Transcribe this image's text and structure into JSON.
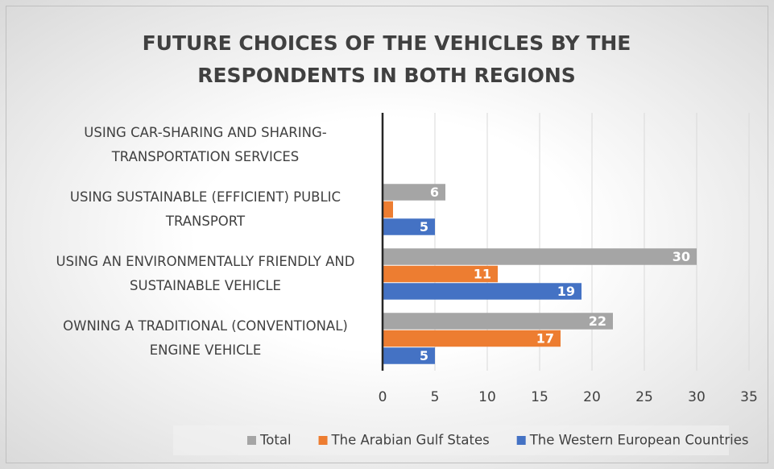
{
  "chart_data": {
    "type": "hbar",
    "title": "FUTURE CHOICES OF THE VEHICLES BY THE RESPONDENTS IN BOTH REGIONS",
    "categories": [
      "OWNING A TRADITIONAL (CONVENTIONAL) ENGINE VEHICLE",
      "USING AN ENVIRONMENTALLY FRIENDLY AND SUSTAINABLE VEHICLE",
      "USING SUSTAINABLE (EFFICIENT) PUBLIC TRANSPORT",
      "USING CAR-SHARING AND SHARING-TRANSPORTATION SERVICES"
    ],
    "series": [
      {
        "name": "Total",
        "color": "#a5a5a5",
        "values": [
          22,
          30,
          6,
          0
        ],
        "value_labels": [
          "22",
          "30",
          "6",
          null
        ]
      },
      {
        "name": "The Arabian Gulf States",
        "color": "#ed7d31",
        "values": [
          17,
          11,
          1,
          0
        ],
        "value_labels": [
          "17",
          "11",
          null,
          null
        ]
      },
      {
        "name": "The Western European Countries",
        "color": "#4472c4",
        "values": [
          5,
          19,
          5,
          0
        ],
        "value_labels": [
          "5",
          "19",
          "5",
          null
        ]
      }
    ],
    "xlim": [
      0,
      35
    ],
    "xticks": [
      0,
      5,
      10,
      15,
      20,
      25,
      30,
      35
    ],
    "grid": true,
    "legend": "bottom"
  }
}
